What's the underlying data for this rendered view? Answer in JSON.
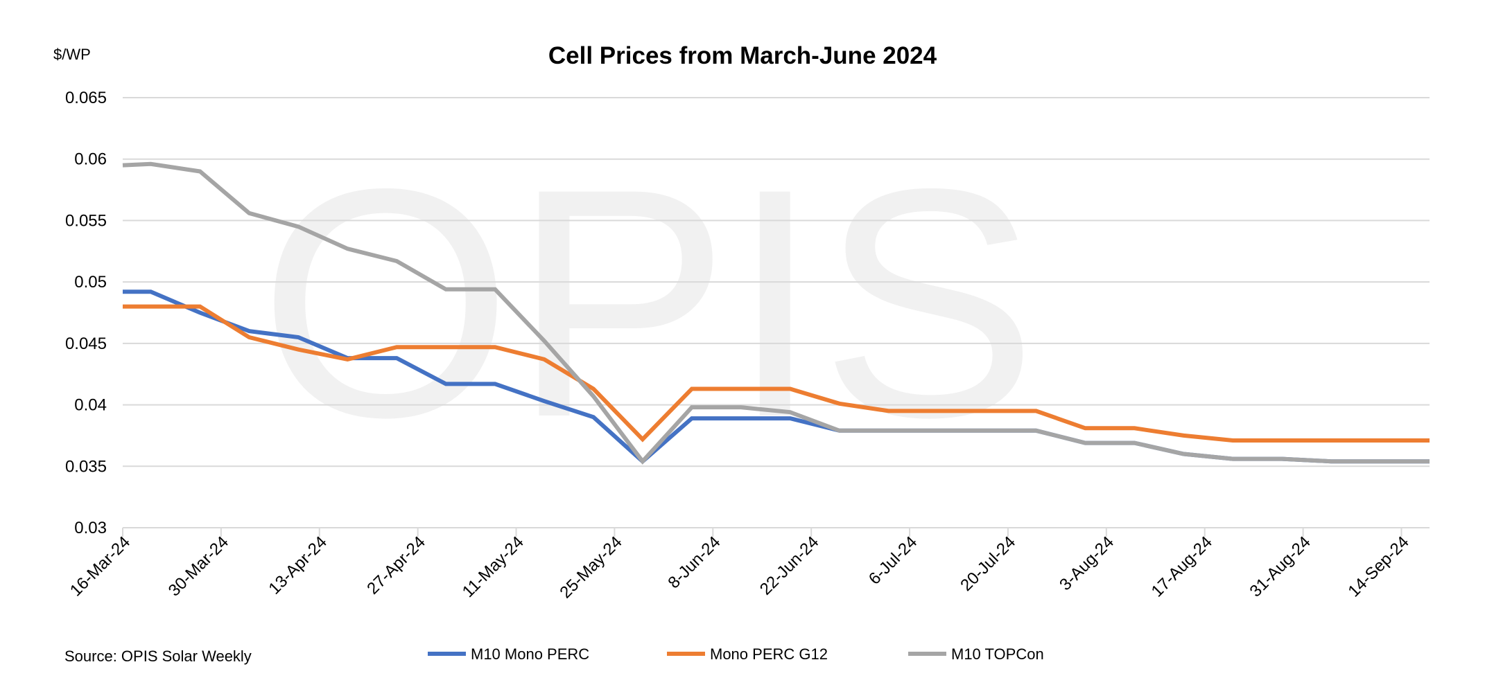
{
  "chart_data": {
    "type": "line",
    "title": "Cell Prices from March-June 2024",
    "ylabel": "$/WP",
    "xlabel": "",
    "ylim": [
      0.03,
      0.065
    ],
    "yticks": [
      "0.03",
      "0.035",
      "0.04",
      "0.045",
      "0.05",
      "0.055",
      "0.06",
      "0.065"
    ],
    "xlim": [
      "16-Mar-24",
      "18-Sep-24"
    ],
    "xticks": [
      "16-Mar-24",
      "30-Mar-24",
      "13-Apr-24",
      "27-Apr-24",
      "11-May-24",
      "25-May-24",
      "8-Jun-24",
      "22-Jun-24",
      "6-Jul-24",
      "20-Jul-24",
      "3-Aug-24",
      "17-Aug-24",
      "31-Aug-24",
      "14-Sep-24"
    ],
    "grid": "horizontal",
    "legend": "bottom",
    "watermark": "OPIS",
    "source": "Source: OPIS Solar Weekly",
    "x": [
      "16-Mar-24",
      "20-Mar-24",
      "27-Mar-24",
      "3-Apr-24",
      "10-Apr-24",
      "17-Apr-24",
      "24-Apr-24",
      "1-May-24",
      "8-May-24",
      "15-May-24",
      "22-May-24",
      "29-May-24",
      "5-Jun-24",
      "12-Jun-24",
      "19-Jun-24",
      "26-Jun-24",
      "3-Jul-24",
      "10-Jul-24",
      "17-Jul-24",
      "24-Jul-24",
      "31-Jul-24",
      "7-Aug-24",
      "14-Aug-24",
      "21-Aug-24",
      "28-Aug-24",
      "4-Sep-24",
      "11-Sep-24",
      "18-Sep-24"
    ],
    "series": [
      {
        "name": "M10 Mono PERC",
        "color": "#4472c4",
        "values": [
          0.0492,
          0.0492,
          0.0475,
          0.046,
          0.0455,
          0.0438,
          0.0438,
          0.0417,
          0.0417,
          0.0403,
          0.039,
          0.0354,
          0.0389,
          0.0389,
          0.0389,
          0.0379,
          0.0379,
          0.0379,
          0.0379,
          0.0379,
          0.0369,
          0.0369,
          0.036,
          0.0356,
          0.0356,
          0.0354,
          0.0354,
          0.0354
        ]
      },
      {
        "name": "Mono PERC G12",
        "color": "#ed7d31",
        "values": [
          0.048,
          0.048,
          0.048,
          0.0455,
          0.0445,
          0.0437,
          0.0447,
          0.0447,
          0.0447,
          0.0437,
          0.0413,
          0.0372,
          0.0413,
          0.0413,
          0.0413,
          0.0401,
          0.0395,
          0.0395,
          0.0395,
          0.0395,
          0.0381,
          0.0381,
          0.0375,
          0.0371,
          0.0371,
          0.0371,
          0.0371,
          0.0371
        ]
      },
      {
        "name": "M10 TOPCon",
        "color": "#a5a5a5",
        "values": [
          0.0595,
          0.0596,
          0.059,
          0.0556,
          0.0545,
          0.0527,
          0.0517,
          0.0494,
          0.0494,
          0.0452,
          0.0407,
          0.0354,
          0.0398,
          0.0398,
          0.0394,
          0.0379,
          0.0379,
          0.0379,
          0.0379,
          0.0379,
          0.0369,
          0.0369,
          0.036,
          0.0356,
          0.0356,
          0.0354,
          0.0354,
          0.0354
        ]
      }
    ]
  }
}
